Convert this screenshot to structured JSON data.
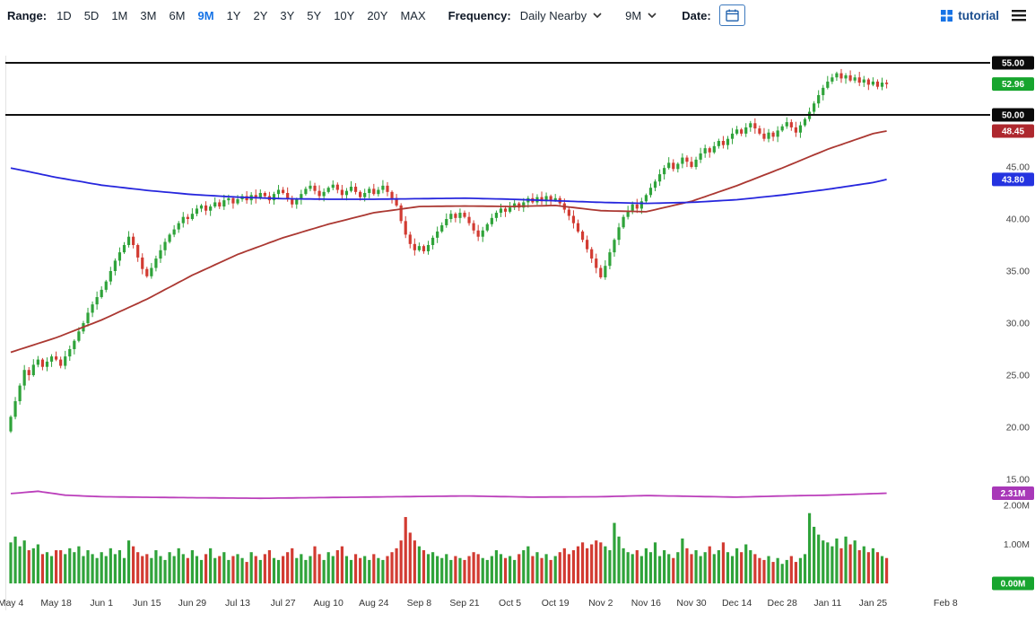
{
  "toolbar": {
    "range_label": "Range:",
    "ranges": [
      "1D",
      "5D",
      "1M",
      "3M",
      "6M",
      "9M",
      "1Y",
      "2Y",
      "3Y",
      "5Y",
      "10Y",
      "20Y",
      "MAX"
    ],
    "selected_range": "9M",
    "frequency_label": "Frequency:",
    "frequency_value": "Daily Nearby",
    "aggregation_value": "9M",
    "date_label": "Date:",
    "tutorial_label": "tutorial"
  },
  "chart_data": {
    "type": "candlestick",
    "ylim": [
      15,
      55
    ],
    "last_close": 52.96,
    "first_open": 19.6,
    "colors": {
      "up": "#2fa33a",
      "down": "#d23b32",
      "ma_blue": "#2626dd",
      "ma_red": "#ab3832",
      "vol_ma": "#bb3fbb",
      "badge_green": "#17a52e",
      "badge_red": "#ae282e",
      "badge_blue": "#2433e0",
      "badge_purple": "#a838b8",
      "badge_black": "#0a0a0a",
      "hline": "#101010"
    },
    "price_axis": [
      {
        "label": "55.00",
        "value": 55,
        "style": "black-badge"
      },
      {
        "label": "52.96",
        "value": 52.96,
        "style": "green-badge"
      },
      {
        "label": "50.00",
        "value": 50,
        "style": "black-badge"
      },
      {
        "label": "48.45",
        "value": 48.45,
        "style": "red-badge"
      },
      {
        "label": "45.00",
        "value": 45,
        "style": "plain"
      },
      {
        "label": "43.80",
        "value": 43.8,
        "style": "blue-badge"
      },
      {
        "label": "40.00",
        "value": 40,
        "style": "plain"
      },
      {
        "label": "35.00",
        "value": 35,
        "style": "plain"
      },
      {
        "label": "30.00",
        "value": 30,
        "style": "plain"
      },
      {
        "label": "25.00",
        "value": 25,
        "style": "plain"
      },
      {
        "label": "20.00",
        "value": 20,
        "style": "plain"
      },
      {
        "label": "15.00",
        "value": 15,
        "style": "plain"
      }
    ],
    "volume_axis": [
      {
        "label": "2.31M",
        "value": 2.31,
        "style": "purple-badge"
      },
      {
        "label": "2.00M",
        "value": 2.0,
        "style": "plain"
      },
      {
        "label": "1.00M",
        "value": 1.0,
        "style": "plain"
      },
      {
        "label": "0.00M",
        "value": 0.0,
        "style": "green-badge"
      }
    ],
    "hlines": [
      55,
      50
    ],
    "x_ticks": [
      {
        "label": "May 4",
        "i": 0
      },
      {
        "label": "May 18",
        "i": 10
      },
      {
        "label": "Jun 1",
        "i": 20
      },
      {
        "label": "Jun 15",
        "i": 30
      },
      {
        "label": "Jun 29",
        "i": 40
      },
      {
        "label": "Jul 13",
        "i": 50
      },
      {
        "label": "Jul 27",
        "i": 60
      },
      {
        "label": "Aug 10",
        "i": 70
      },
      {
        "label": "Aug 24",
        "i": 80
      },
      {
        "label": "Sep 8",
        "i": 90
      },
      {
        "label": "Sep 21",
        "i": 100
      },
      {
        "label": "Oct 5",
        "i": 110
      },
      {
        "label": "Oct 19",
        "i": 120
      },
      {
        "label": "Nov 2",
        "i": 130
      },
      {
        "label": "Nov 16",
        "i": 140
      },
      {
        "label": "Nov 30",
        "i": 150
      },
      {
        "label": "Dec 14",
        "i": 160
      },
      {
        "label": "Dec 28",
        "i": 170
      },
      {
        "label": "Jan 11",
        "i": 180
      },
      {
        "label": "Jan 25",
        "i": 190
      },
      {
        "label": "Feb 8",
        "i": 206
      }
    ],
    "closes": [
      21.0,
      22.5,
      24.0,
      25.5,
      25.0,
      26.0,
      26.5,
      25.8,
      26.3,
      26.8,
      26.5,
      25.9,
      26.8,
      27.5,
      28.3,
      29.2,
      30.0,
      31.0,
      31.8,
      32.5,
      33.2,
      34.0,
      35.0,
      36.0,
      36.8,
      37.5,
      38.3,
      37.5,
      36.3,
      35.2,
      34.5,
      35.3,
      36.2,
      37.0,
      37.8,
      38.5,
      39.0,
      39.6,
      40.2,
      40.0,
      40.5,
      41.0,
      41.3,
      40.8,
      41.2,
      41.6,
      41.2,
      41.8,
      42.0,
      41.5,
      41.9,
      42.2,
      41.8,
      42.3,
      42.0,
      42.5,
      42.2,
      41.8,
      42.4,
      42.8,
      42.5,
      41.9,
      41.4,
      41.9,
      42.4,
      42.9,
      43.2,
      42.7,
      42.2,
      42.6,
      43.0,
      43.3,
      42.8,
      42.3,
      42.7,
      43.1,
      42.6,
      42.1,
      42.5,
      42.9,
      42.4,
      42.8,
      43.2,
      42.6,
      42.0,
      41.3,
      39.8,
      38.5,
      37.6,
      37.0,
      37.4,
      36.9,
      37.5,
      38.2,
      38.8,
      39.4,
      40.0,
      40.5,
      40.1,
      40.6,
      40.2,
      39.6,
      38.9,
      38.3,
      38.9,
      39.5,
      40.1,
      40.6,
      41.0,
      40.7,
      41.1,
      41.5,
      41.1,
      41.6,
      42.0,
      41.6,
      42.1,
      41.7,
      42.2,
      41.8,
      42.0,
      41.5,
      40.9,
      40.3,
      39.6,
      38.8,
      38.0,
      37.1,
      36.2,
      35.3,
      34.4,
      35.5,
      36.8,
      38.0,
      39.2,
      40.2,
      40.8,
      41.4,
      41.0,
      41.7,
      42.3,
      43.0,
      43.6,
      44.3,
      44.9,
      45.4,
      44.8,
      45.3,
      45.9,
      45.5,
      45.0,
      45.7,
      46.3,
      46.8,
      46.4,
      47.0,
      47.5,
      47.1,
      47.7,
      48.2,
      48.6,
      48.2,
      48.8,
      49.2,
      48.7,
      48.2,
      47.7,
      48.3,
      47.9,
      48.5,
      48.9,
      49.3,
      48.8,
      48.3,
      49.0,
      49.6,
      50.3,
      51.1,
      51.9,
      52.6,
      53.2,
      53.6,
      54.0,
      53.5,
      53.8,
      53.3,
      53.6,
      53.1,
      53.4,
      52.9,
      53.2,
      52.7,
      53.1,
      52.96
    ],
    "volumes": [
      1.05,
      1.2,
      0.95,
      1.1,
      0.85,
      0.9,
      1.0,
      0.75,
      0.8,
      0.7,
      0.85,
      0.85,
      0.75,
      0.9,
      0.8,
      0.95,
      0.7,
      0.85,
      0.75,
      0.65,
      0.8,
      0.7,
      0.9,
      0.75,
      0.85,
      0.65,
      1.1,
      0.95,
      0.8,
      0.7,
      0.75,
      0.65,
      0.85,
      0.7,
      0.6,
      0.8,
      0.7,
      0.9,
      0.75,
      0.65,
      0.85,
      0.7,
      0.6,
      0.75,
      0.9,
      0.65,
      0.7,
      0.8,
      0.6,
      0.7,
      0.75,
      0.65,
      0.55,
      0.8,
      0.7,
      0.6,
      0.75,
      0.85,
      0.65,
      0.6,
      0.7,
      0.8,
      0.9,
      0.65,
      0.75,
      0.6,
      0.7,
      0.95,
      0.75,
      0.6,
      0.8,
      0.7,
      0.85,
      0.95,
      0.7,
      0.6,
      0.75,
      0.65,
      0.7,
      0.6,
      0.75,
      0.65,
      0.6,
      0.7,
      0.8,
      0.9,
      1.1,
      1.7,
      1.3,
      1.1,
      0.95,
      0.85,
      0.75,
      0.8,
      0.7,
      0.65,
      0.75,
      0.6,
      0.7,
      0.65,
      0.6,
      0.7,
      0.8,
      0.75,
      0.65,
      0.6,
      0.7,
      0.85,
      0.75,
      0.65,
      0.7,
      0.6,
      0.75,
      0.85,
      0.95,
      0.7,
      0.8,
      0.65,
      0.75,
      0.6,
      0.7,
      0.8,
      0.9,
      0.75,
      0.85,
      0.95,
      1.05,
      0.9,
      1.0,
      1.1,
      1.05,
      0.95,
      0.85,
      1.55,
      1.2,
      0.9,
      0.8,
      0.75,
      0.85,
      0.7,
      0.9,
      0.8,
      1.05,
      0.7,
      0.85,
      0.75,
      0.65,
      0.8,
      1.15,
      0.9,
      0.75,
      0.85,
      0.7,
      0.8,
      0.95,
      0.75,
      0.85,
      1.05,
      0.8,
      0.7,
      0.9,
      0.8,
      1.0,
      0.85,
      0.75,
      0.65,
      0.6,
      0.7,
      0.55,
      0.65,
      0.5,
      0.6,
      0.7,
      0.55,
      0.65,
      0.75,
      1.8,
      1.45,
      1.25,
      1.1,
      1.05,
      0.95,
      1.15,
      0.9,
      1.2,
      1.0,
      1.1,
      0.85,
      0.95,
      0.8,
      0.9,
      0.8,
      0.7,
      0.65
    ],
    "ma_blue_points": [
      [
        0,
        44.9
      ],
      [
        10,
        44.0
      ],
      [
        20,
        43.25
      ],
      [
        30,
        42.75
      ],
      [
        40,
        42.35
      ],
      [
        50,
        42.1
      ],
      [
        60,
        41.95
      ],
      [
        70,
        41.9
      ],
      [
        80,
        41.9
      ],
      [
        90,
        41.95
      ],
      [
        100,
        42.0
      ],
      [
        110,
        41.9
      ],
      [
        120,
        41.75
      ],
      [
        130,
        41.6
      ],
      [
        140,
        41.5
      ],
      [
        150,
        41.6
      ],
      [
        160,
        41.85
      ],
      [
        170,
        42.3
      ],
      [
        180,
        42.85
      ],
      [
        190,
        43.5
      ],
      [
        193,
        43.8
      ]
    ],
    "ma_red_points": [
      [
        0,
        27.2
      ],
      [
        10,
        28.6
      ],
      [
        20,
        30.3
      ],
      [
        30,
        32.3
      ],
      [
        40,
        34.6
      ],
      [
        50,
        36.6
      ],
      [
        60,
        38.2
      ],
      [
        70,
        39.5
      ],
      [
        80,
        40.6
      ],
      [
        90,
        41.2
      ],
      [
        100,
        41.25
      ],
      [
        110,
        41.2
      ],
      [
        120,
        41.3
      ],
      [
        130,
        40.8
      ],
      [
        140,
        40.7
      ],
      [
        150,
        41.7
      ],
      [
        160,
        43.2
      ],
      [
        170,
        44.9
      ],
      [
        180,
        46.7
      ],
      [
        190,
        48.2
      ],
      [
        193,
        48.45
      ]
    ],
    "vol_ma_points": [
      [
        0,
        2.3
      ],
      [
        6,
        2.36
      ],
      [
        12,
        2.26
      ],
      [
        20,
        2.22
      ],
      [
        35,
        2.2
      ],
      [
        55,
        2.18
      ],
      [
        70,
        2.2
      ],
      [
        85,
        2.22
      ],
      [
        100,
        2.24
      ],
      [
        115,
        2.21
      ],
      [
        130,
        2.22
      ],
      [
        140,
        2.25
      ],
      [
        150,
        2.23
      ],
      [
        160,
        2.21
      ],
      [
        170,
        2.24
      ],
      [
        180,
        2.26
      ],
      [
        188,
        2.29
      ],
      [
        193,
        2.31
      ]
    ]
  }
}
